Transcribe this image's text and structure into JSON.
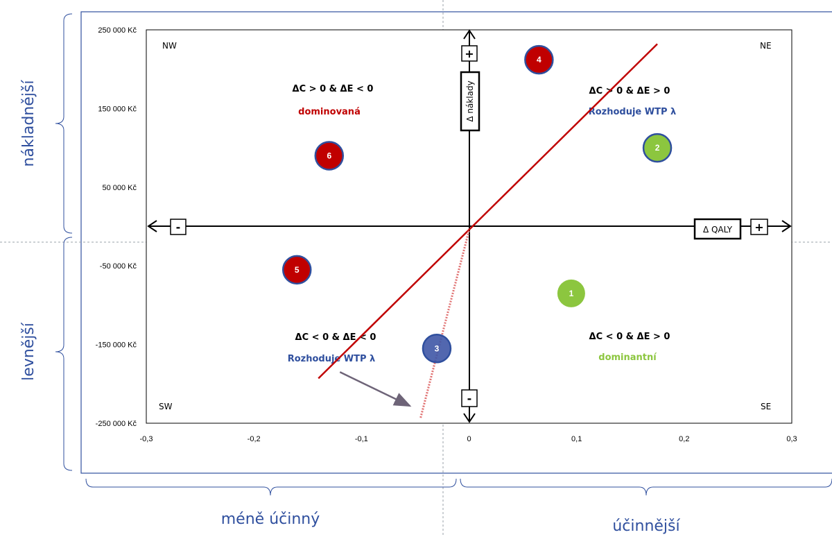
{
  "chart_data": {
    "type": "scatter",
    "title": "",
    "xlabel": "Δ QALY",
    "ylabel": "Δ náklady",
    "xlim": [
      -0.3,
      0.3
    ],
    "ylim": [
      -250000,
      250000
    ],
    "x_ticks": [
      "-0,3",
      "-0,2",
      "-0,1",
      "0",
      "0,1",
      "0,2",
      "0,3"
    ],
    "y_ticks": [
      "250 000 Kč",
      "150 000 Kč",
      "50 000 Kč",
      "-50 000 Kč",
      "-150 000 Kč",
      "-250 000 Kč"
    ],
    "grid": false,
    "points": [
      {
        "label": "1",
        "x": 0.095,
        "y": -85000,
        "color": "#8cc63f"
      },
      {
        "label": "2",
        "x": 0.175,
        "y": 100000,
        "color": "#8cc63f"
      },
      {
        "label": "3",
        "x": -0.03,
        "y": -155000,
        "color": "#3f57a6"
      },
      {
        "label": "4",
        "x": 0.065,
        "y": 212000,
        "color": "#c00000"
      },
      {
        "label": "5",
        "x": -0.16,
        "y": -55000,
        "color": "#c00000"
      },
      {
        "label": "6",
        "x": -0.13,
        "y": 90000,
        "color": "#c00000"
      }
    ],
    "wtp_line": {
      "x": [
        -0.14,
        0.175
      ],
      "y": [
        -193000,
        232000
      ],
      "color": "#c00000"
    },
    "wtp_dotted_line": {
      "x": [
        -0.045,
        0
      ],
      "y": [
        -243000,
        -5000
      ],
      "color": "#e07070"
    },
    "arrow": {
      "from": [
        -0.12,
        -185000
      ],
      "to": [
        -0.055,
        -228000
      ]
    },
    "quadrants": {
      "nw": {
        "corner": "NW",
        "condition": "ΔC > 0 & ΔE < 0",
        "verdict": "dominovaná",
        "verdict_color": "#c00000"
      },
      "ne": {
        "corner": "NE",
        "condition": "ΔC > 0 & ΔE > 0",
        "verdict": "Rozhoduje WTP λ",
        "verdict_color": "#2f4f9e"
      },
      "sw": {
        "corner": "SW",
        "condition": "ΔC < 0 & ΔE < 0",
        "verdict": "Rozhoduje WTP λ",
        "verdict_color": "#2f4f9e"
      },
      "se": {
        "corner": "SE",
        "condition": "ΔC < 0 & ΔE > 0",
        "verdict": "dominantní",
        "verdict_color": "#8cc63f"
      }
    },
    "axis_signs": {
      "left": "-",
      "right": "+",
      "top": "+",
      "bottom": "-"
    },
    "brackets": {
      "top": "nákladnější",
      "bottom": "levnější",
      "left": "méně účinný",
      "right": "účinnější"
    }
  }
}
